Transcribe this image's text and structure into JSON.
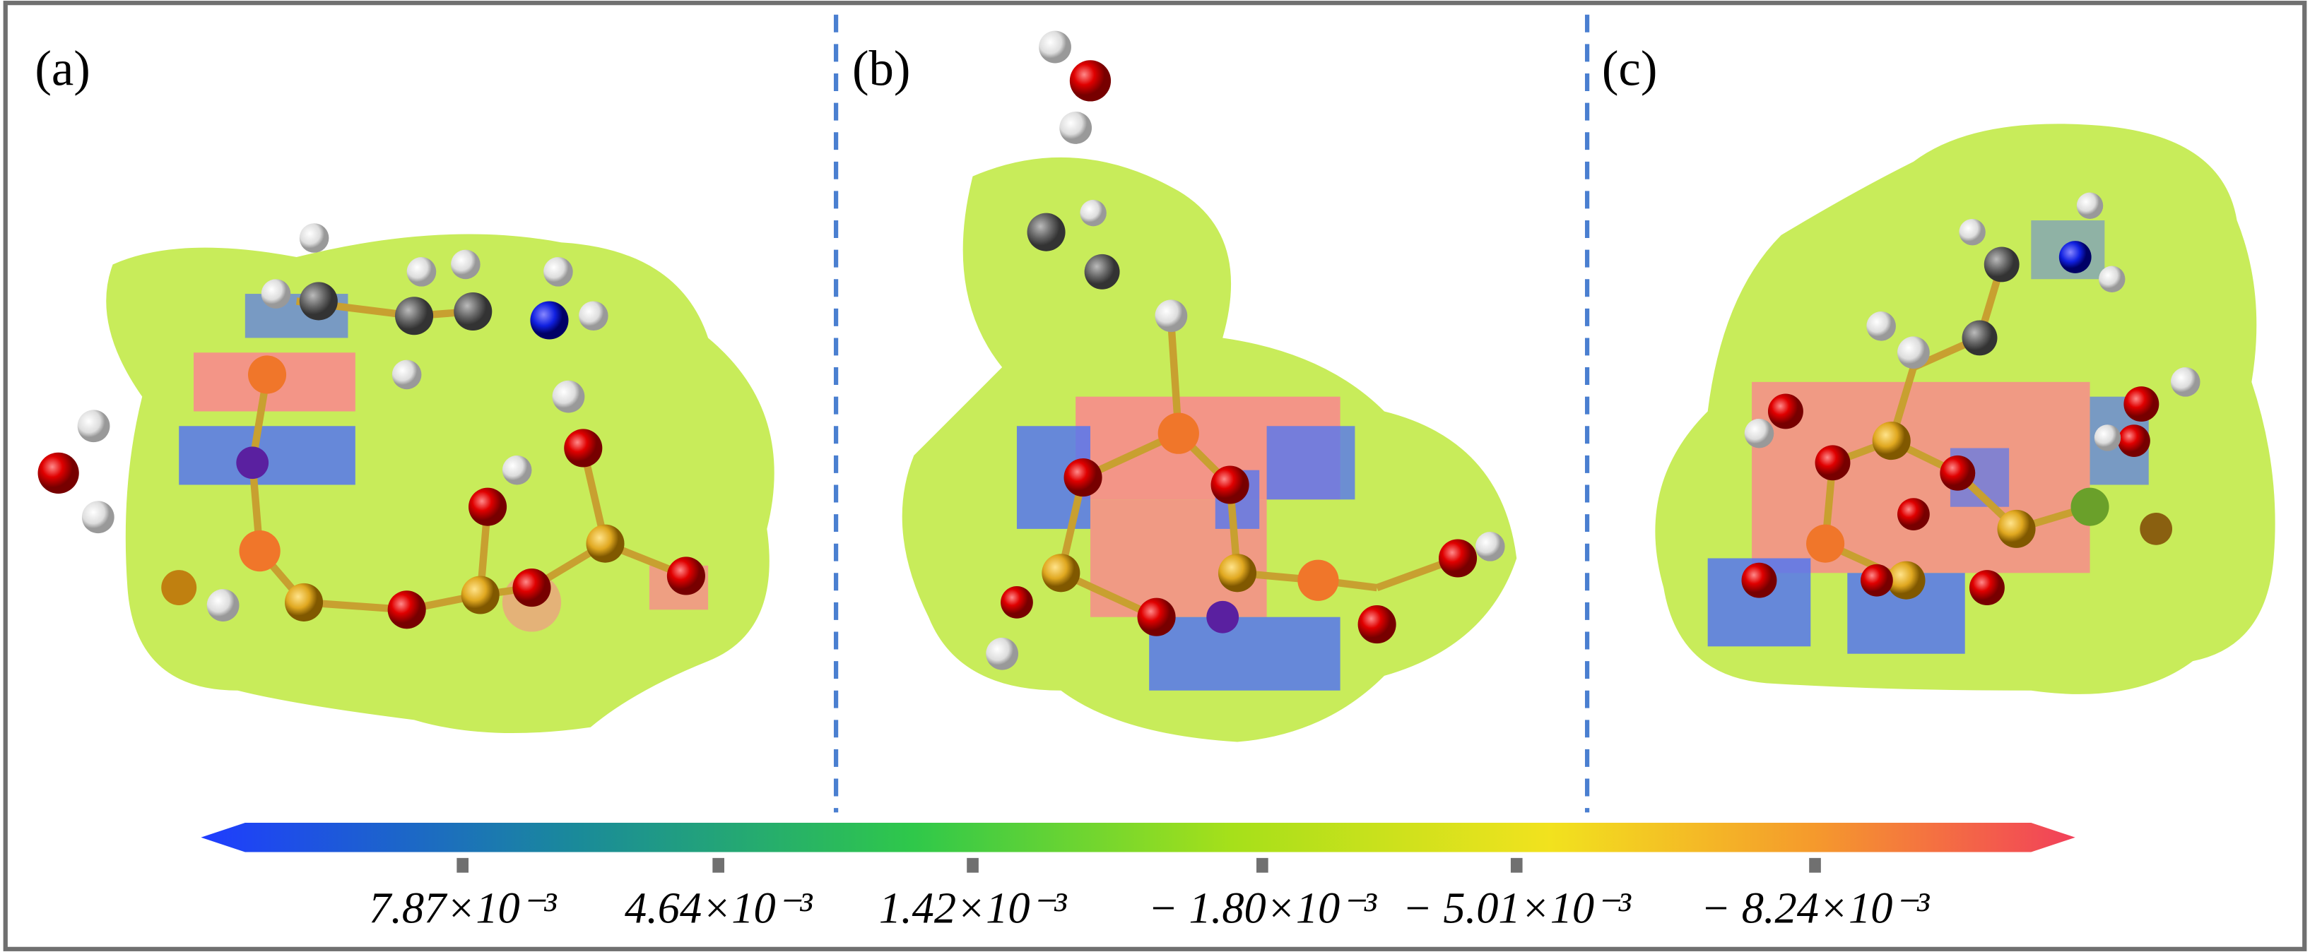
{
  "panels": [
    {
      "label": "(a)"
    },
    {
      "label": "(b)"
    },
    {
      "label": "(c)"
    }
  ],
  "colorbar": {
    "tick_labels": [
      "7.87×10⁻³",
      "4.64×10⁻³",
      "1.42×10⁻³",
      "− 1.80×10⁻³",
      "− 5.01×10⁻³",
      "− 8.24×10⁻³"
    ]
  }
}
